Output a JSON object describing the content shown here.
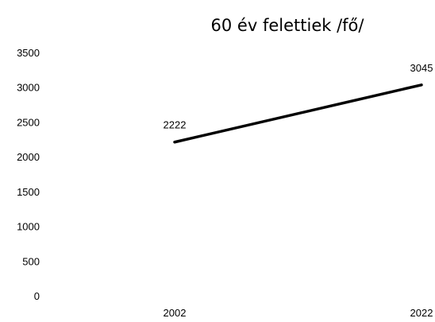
{
  "chart_data": {
    "type": "line",
    "title": "60 év felettiek /fő/",
    "xlabel": "",
    "ylabel": "",
    "x": [
      "2002",
      "2022"
    ],
    "series": [
      {
        "values": [
          2222,
          3045
        ],
        "color": "#000000"
      }
    ],
    "data_labels": [
      "2222",
      "3045"
    ],
    "y_ticks": [
      "0",
      "500",
      "1000",
      "1500",
      "2000",
      "2500",
      "3000",
      "3500"
    ],
    "ylim": [
      0,
      3500
    ],
    "grid": false,
    "legend": "none"
  }
}
